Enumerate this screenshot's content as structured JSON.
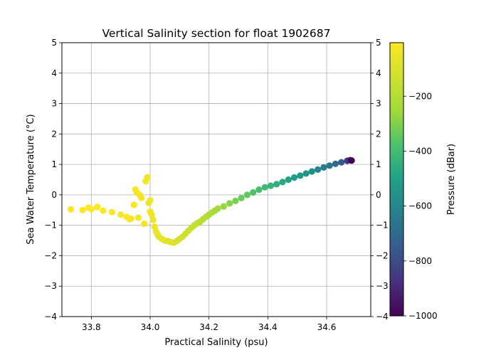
{
  "chart_data": {
    "type": "scatter",
    "title": "Vertical Salinity section for float 1902687",
    "xlabel": "Practical Salinity (psu)",
    "ylabel": "Sea Water Temperature (°C)",
    "xlim": [
      33.7,
      34.75
    ],
    "ylim": [
      -4,
      5
    ],
    "xticks": [
      "33.8",
      "34.0",
      "34.2",
      "34.4",
      "34.6"
    ],
    "xtick_values": [
      33.8,
      34.0,
      34.2,
      34.4,
      34.6
    ],
    "yticks": [
      "−4",
      "−3",
      "−2",
      "−1",
      "0",
      "1",
      "2",
      "3",
      "4",
      "5"
    ],
    "ytick_values": [
      -4,
      -3,
      -2,
      -1,
      0,
      1,
      2,
      3,
      4,
      5
    ],
    "grid": true,
    "colorbar": {
      "label": "Pressure (dBar)",
      "colormap": "viridis",
      "range": [
        -1000,
        -5
      ],
      "ticks": [
        "−1000",
        "−800",
        "−600",
        "−400",
        "−200"
      ],
      "tick_values": [
        -1000,
        -800,
        -600,
        -400,
        -200
      ]
    },
    "points": {
      "salinity": [
        33.73,
        33.77,
        33.79,
        33.8,
        33.82,
        33.84,
        33.87,
        33.9,
        33.92,
        33.93,
        33.935,
        33.945,
        33.95,
        33.955,
        33.96,
        33.965,
        33.97,
        33.98,
        33.985,
        33.99,
        33.995,
        34.0,
        34.0,
        34.005,
        34.01,
        34.015,
        34.02,
        34.025,
        34.03,
        34.04,
        34.05,
        34.06,
        34.07,
        34.08,
        34.09,
        34.1,
        34.11,
        34.12,
        34.13,
        34.14,
        34.15,
        34.16,
        34.17,
        34.18,
        34.19,
        34.2,
        34.21,
        34.22,
        34.23,
        34.25,
        34.27,
        34.29,
        34.31,
        34.33,
        34.35,
        34.37,
        34.39,
        34.41,
        34.43,
        34.45,
        34.47,
        34.49,
        34.51,
        34.53,
        34.55,
        34.57,
        34.59,
        34.61,
        34.63,
        34.65,
        34.67,
        34.68,
        34.685
      ],
      "temperature": [
        -0.48,
        -0.5,
        -0.42,
        -0.47,
        -0.4,
        -0.52,
        -0.57,
        -0.65,
        -0.72,
        -0.8,
        -0.78,
        -0.33,
        0.18,
        0.08,
        -0.75,
        0.0,
        -0.1,
        -0.95,
        0.45,
        0.58,
        -0.27,
        -0.55,
        -0.18,
        -0.65,
        -0.82,
        -1.05,
        -1.2,
        -1.3,
        -1.38,
        -1.45,
        -1.5,
        -1.52,
        -1.55,
        -1.57,
        -1.52,
        -1.45,
        -1.38,
        -1.28,
        -1.18,
        -1.08,
        -1.0,
        -0.93,
        -0.88,
        -0.8,
        -0.72,
        -0.65,
        -0.58,
        -0.52,
        -0.45,
        -0.38,
        -0.28,
        -0.2,
        -0.1,
        0.0,
        0.08,
        0.17,
        0.25,
        0.3,
        0.35,
        0.42,
        0.5,
        0.57,
        0.63,
        0.7,
        0.77,
        0.83,
        0.9,
        0.96,
        1.02,
        1.07,
        1.12,
        1.14,
        1.13
      ],
      "pressure": [
        -6,
        -7,
        -8,
        -9,
        -10,
        -11,
        -12,
        -14,
        -16,
        -18,
        -20,
        -22,
        -24,
        -25,
        -26,
        -27,
        -28,
        -30,
        -32,
        -34,
        -36,
        -38,
        -40,
        -42,
        -45,
        -48,
        -52,
        -56,
        -60,
        -66,
        -72,
        -80,
        -88,
        -96,
        -104,
        -112,
        -120,
        -130,
        -140,
        -150,
        -160,
        -170,
        -180,
        -190,
        -200,
        -212,
        -224,
        -236,
        -250,
        -270,
        -290,
        -310,
        -330,
        -350,
        -370,
        -390,
        -410,
        -430,
        -450,
        -470,
        -490,
        -510,
        -530,
        -550,
        -570,
        -600,
        -630,
        -660,
        -700,
        -760,
        -840,
        -920,
        -1000
      ]
    }
  }
}
